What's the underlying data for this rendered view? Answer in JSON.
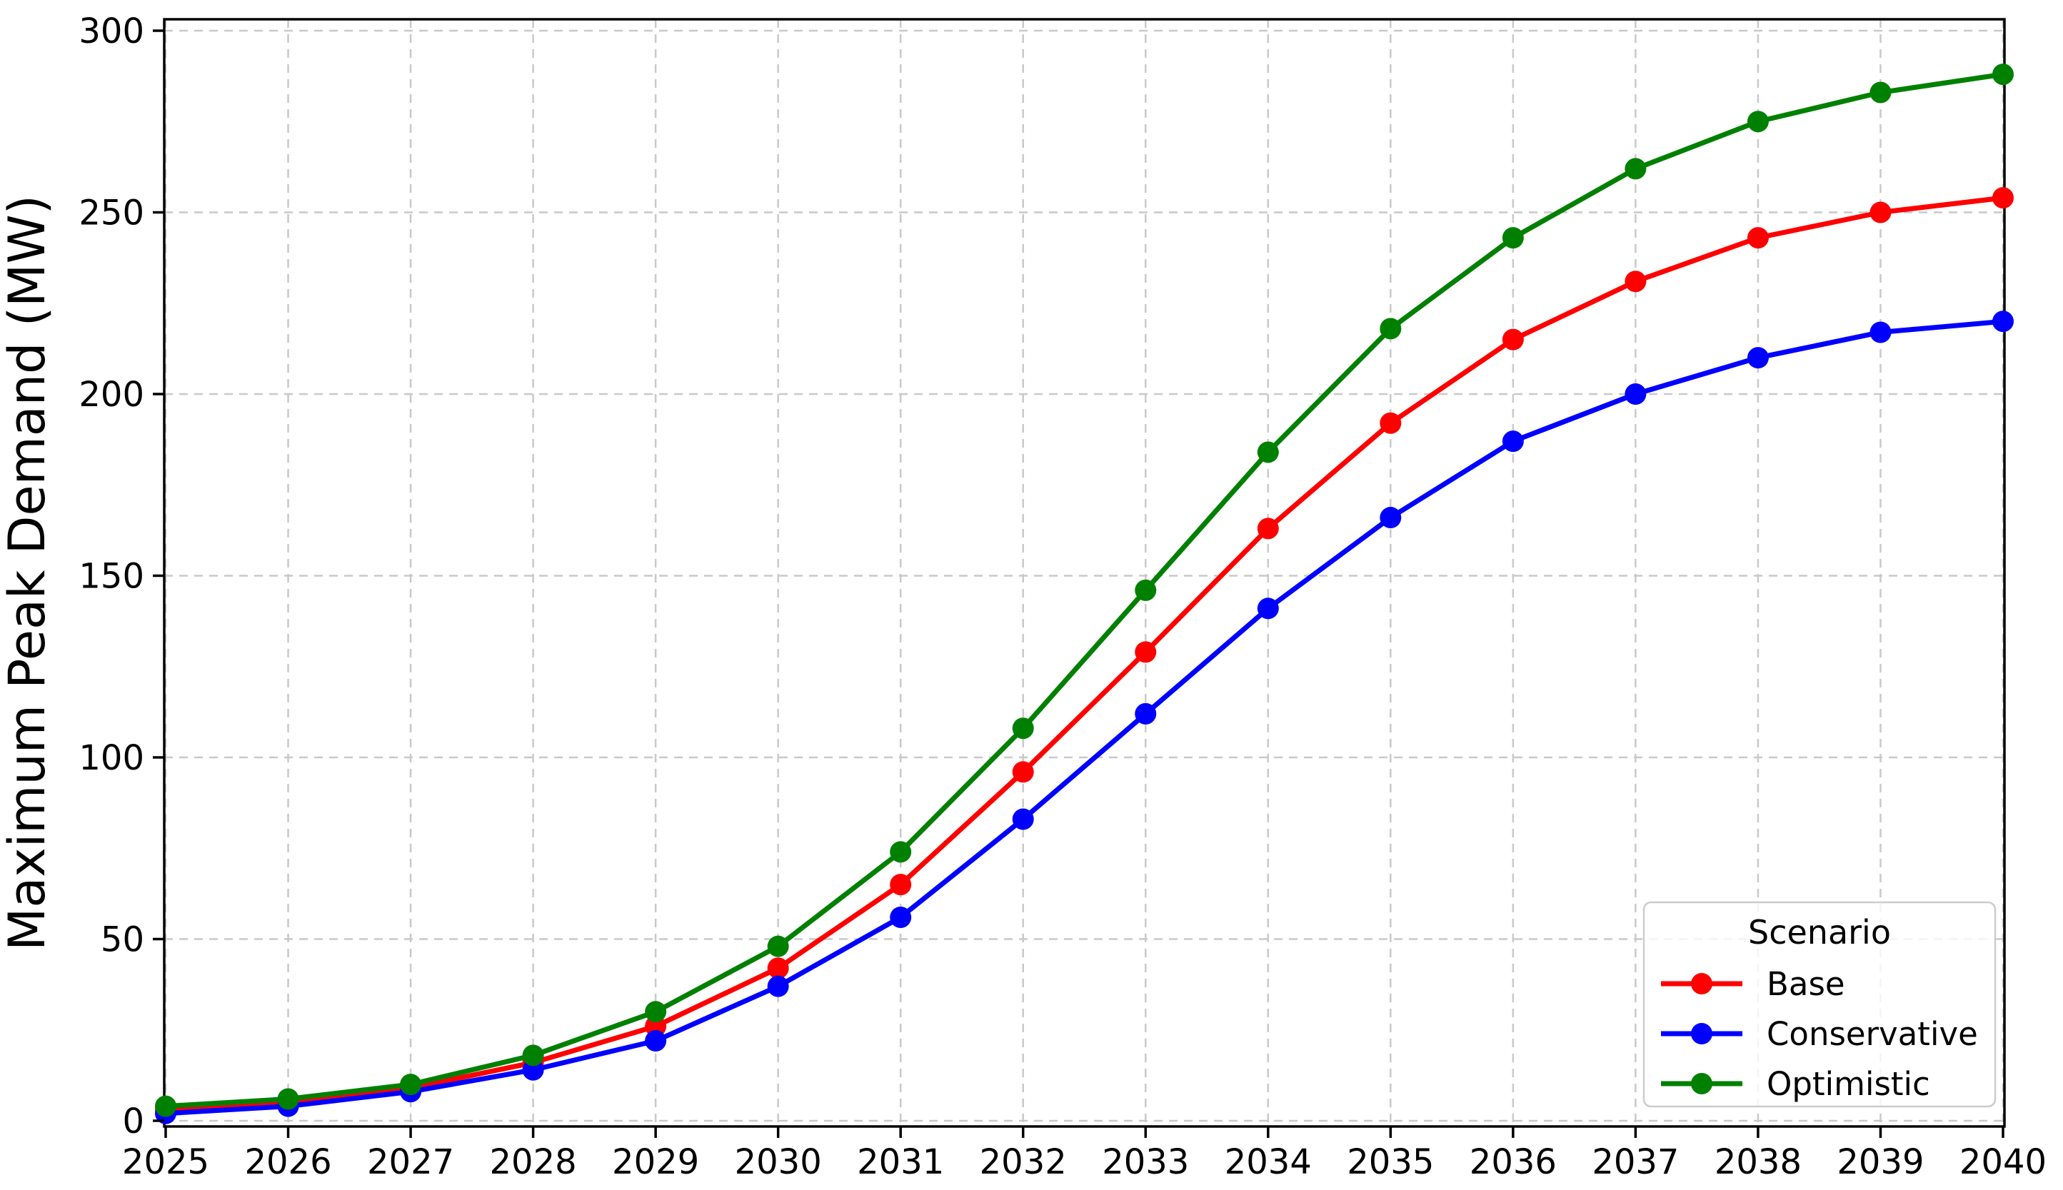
{
  "chart_data": {
    "type": "line",
    "title": "",
    "xlabel": "",
    "ylabel": "Maximum Peak Demand (MW)",
    "x": [
      2025,
      2026,
      2027,
      2028,
      2029,
      2030,
      2031,
      2032,
      2033,
      2034,
      2035,
      2036,
      2037,
      2038,
      2039,
      2040
    ],
    "x_tick_labels": [
      "2025",
      "2026",
      "2027",
      "2028",
      "2029",
      "2030",
      "2031",
      "2032",
      "2033",
      "2034",
      "2035",
      "2036",
      "2037",
      "2038",
      "2039",
      "2040"
    ],
    "y_ticks": [
      0,
      50,
      100,
      150,
      200,
      250,
      300
    ],
    "y_tick_labels": [
      "0",
      "50",
      "100",
      "150",
      "200",
      "250",
      "300"
    ],
    "xlim": [
      2025,
      2040
    ],
    "ylim": [
      0,
      300
    ],
    "grid": {
      "visible": true,
      "style": "dashed",
      "color": "#c9c9c9"
    },
    "legend": {
      "title": "Scenario",
      "position": "lower-right",
      "border_color": "#cccccc",
      "background": "rgba(255,255,255,0.8)"
    },
    "series": [
      {
        "name": "Base",
        "color": "#ff0000",
        "marker": "circle",
        "values": [
          3,
          5,
          9,
          16,
          26,
          42,
          65,
          96,
          129,
          163,
          192,
          215,
          231,
          243,
          250,
          254
        ]
      },
      {
        "name": "Conservative",
        "color": "#0000ff",
        "marker": "circle",
        "values": [
          2,
          4,
          8,
          14,
          22,
          37,
          56,
          83,
          112,
          141,
          166,
          187,
          200,
          210,
          217,
          220
        ]
      },
      {
        "name": "Optimistic",
        "color": "#008000",
        "marker": "circle",
        "values": [
          4,
          6,
          10,
          18,
          30,
          48,
          74,
          108,
          146,
          184,
          218,
          243,
          262,
          275,
          283,
          288
        ]
      }
    ],
    "spine_color": "#000000"
  }
}
